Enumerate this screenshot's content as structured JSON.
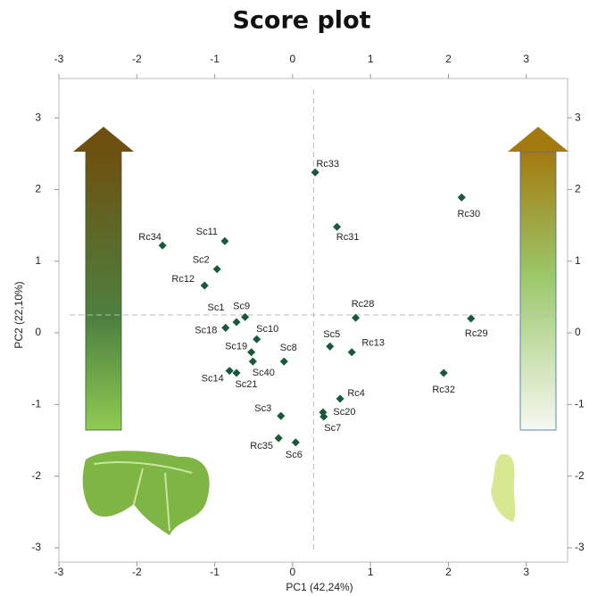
{
  "chart_data": {
    "type": "scatter",
    "title": "Score plot",
    "x_label": "PC1 (42,24%)",
    "y_label": "PC2 (22,10%)",
    "xlim": [
      -3,
      3.53
    ],
    "ylim": [
      -3.2,
      3.55
    ],
    "xticks": [
      -3,
      -2,
      -1,
      0,
      1,
      2,
      3
    ],
    "yticks": [
      -3,
      -2,
      -1,
      0,
      1,
      2,
      3
    ],
    "reference_lines": {
      "x": 0.27,
      "y": 0.25
    },
    "series": [
      {
        "color": "#17593a",
        "labels": [
          "Rc33",
          "Rc30",
          "Rc31",
          "Rc34",
          "Sc11",
          "Sc2",
          "Rc12",
          "Rc28",
          "Rc29",
          "Sc18",
          "Sc1",
          "Sc9",
          "Sc10",
          "Sc19",
          "Sc40",
          "Sc8",
          "Sc5",
          "Rc13",
          "Sc14",
          "Sc21",
          "Rc32",
          "Rc4",
          "Sc20",
          "Sc7",
          "Sc3",
          "Rc35",
          "Sc6"
        ],
        "x": [
          0.29,
          2.17,
          0.57,
          -1.67,
          -0.87,
          -0.97,
          -1.13,
          0.81,
          2.29,
          -0.86,
          -0.72,
          -0.61,
          -0.46,
          -0.53,
          -0.51,
          -0.11,
          0.48,
          0.76,
          -0.81,
          -0.72,
          1.94,
          0.61,
          0.39,
          0.4,
          -0.15,
          -0.18,
          0.04
        ],
        "values": [
          2.24,
          1.89,
          1.48,
          1.22,
          1.28,
          0.89,
          0.66,
          0.21,
          0.2,
          0.07,
          0.15,
          0.22,
          -0.09,
          -0.27,
          -0.4,
          -0.4,
          -0.19,
          -0.27,
          -0.53,
          -0.56,
          -0.56,
          -0.92,
          -1.11,
          -1.17,
          -1.16,
          -1.47,
          -1.53
        ]
      }
    ]
  }
}
